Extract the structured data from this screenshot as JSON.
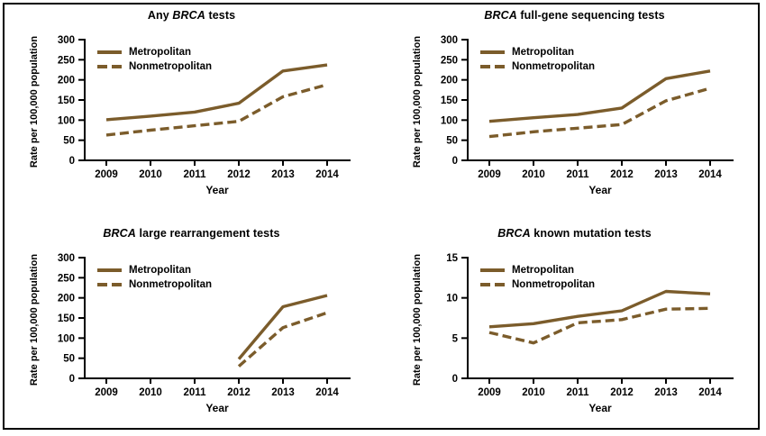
{
  "colors": {
    "line": "#7B5C2B",
    "axis": "#000000",
    "text": "#000000",
    "background": "#FFFFFF",
    "border": "#000000"
  },
  "chart_data": [
    {
      "type": "line",
      "title": "Any BRCA tests",
      "title_parts": [
        {
          "text": "Any ",
          "italic": false
        },
        {
          "text": "BRCA",
          "italic": true
        },
        {
          "text": " tests",
          "italic": false
        }
      ],
      "xlabel": "Year",
      "ylabel": "Rate per 100,000 population",
      "categories": [
        "2009",
        "2010",
        "2011",
        "2012",
        "2013",
        "2014"
      ],
      "ylim": [
        0,
        300
      ],
      "yticks": [
        0,
        50,
        100,
        150,
        200,
        250,
        300
      ],
      "grid": false,
      "legend_position": "top-left",
      "series": [
        {
          "name": "Metropolitan",
          "style": "solid",
          "values": [
            101,
            110,
            120,
            142,
            222,
            237
          ]
        },
        {
          "name": "Nonmetropolitan",
          "style": "dashed",
          "values": [
            63,
            75,
            86,
            97,
            158,
            188
          ]
        }
      ]
    },
    {
      "type": "line",
      "title": "BRCA full-gene sequencing tests",
      "title_parts": [
        {
          "text": "",
          "italic": false
        },
        {
          "text": "BRCA",
          "italic": true
        },
        {
          "text": " full-gene sequencing tests",
          "italic": false
        }
      ],
      "xlabel": "Year",
      "ylabel": "Rate per 100,000 population",
      "categories": [
        "2009",
        "2010",
        "2011",
        "2012",
        "2013",
        "2014"
      ],
      "ylim": [
        0,
        300
      ],
      "yticks": [
        0,
        50,
        100,
        150,
        200,
        250,
        300
      ],
      "grid": false,
      "legend_position": "top-left",
      "series": [
        {
          "name": "Metropolitan",
          "style": "solid",
          "values": [
            97,
            106,
            114,
            130,
            203,
            222
          ]
        },
        {
          "name": "Nonmetropolitan",
          "style": "dashed",
          "values": [
            59,
            71,
            80,
            89,
            148,
            179
          ]
        }
      ]
    },
    {
      "type": "line",
      "title": "BRCA large rearrangement tests",
      "title_parts": [
        {
          "text": "",
          "italic": false
        },
        {
          "text": "BRCA",
          "italic": true
        },
        {
          "text": " large rearrangement tests",
          "italic": false
        }
      ],
      "xlabel": "Year",
      "ylabel": "Rate per 100,000 population",
      "categories": [
        "2009",
        "2010",
        "2011",
        "2012",
        "2013",
        "2014"
      ],
      "ylim": [
        0,
        300
      ],
      "yticks": [
        0,
        50,
        100,
        150,
        200,
        250,
        300
      ],
      "grid": false,
      "legend_position": "top-left",
      "series": [
        {
          "name": "Metropolitan",
          "style": "solid",
          "values": [
            null,
            null,
            null,
            48,
            178,
            206
          ]
        },
        {
          "name": "Nonmetropolitan",
          "style": "dashed",
          "values": [
            null,
            null,
            null,
            30,
            126,
            163
          ]
        }
      ]
    },
    {
      "type": "line",
      "title": "BRCA known mutation tests",
      "title_parts": [
        {
          "text": "",
          "italic": false
        },
        {
          "text": "BRCA",
          "italic": true
        },
        {
          "text": " known mutation tests",
          "italic": false
        }
      ],
      "xlabel": "Year",
      "ylabel": "Rate per 100,000 population",
      "categories": [
        "2009",
        "2010",
        "2011",
        "2012",
        "2013",
        "2014"
      ],
      "ylim": [
        0,
        15
      ],
      "yticks": [
        0,
        5,
        10,
        15
      ],
      "grid": false,
      "legend_position": "top-left",
      "series": [
        {
          "name": "Metropolitan",
          "style": "solid",
          "values": [
            6.4,
            6.8,
            7.7,
            8.4,
            10.8,
            10.5
          ]
        },
        {
          "name": "Nonmetropolitan",
          "style": "dashed",
          "values": [
            5.7,
            4.4,
            6.9,
            7.3,
            8.6,
            8.7
          ]
        }
      ]
    }
  ]
}
